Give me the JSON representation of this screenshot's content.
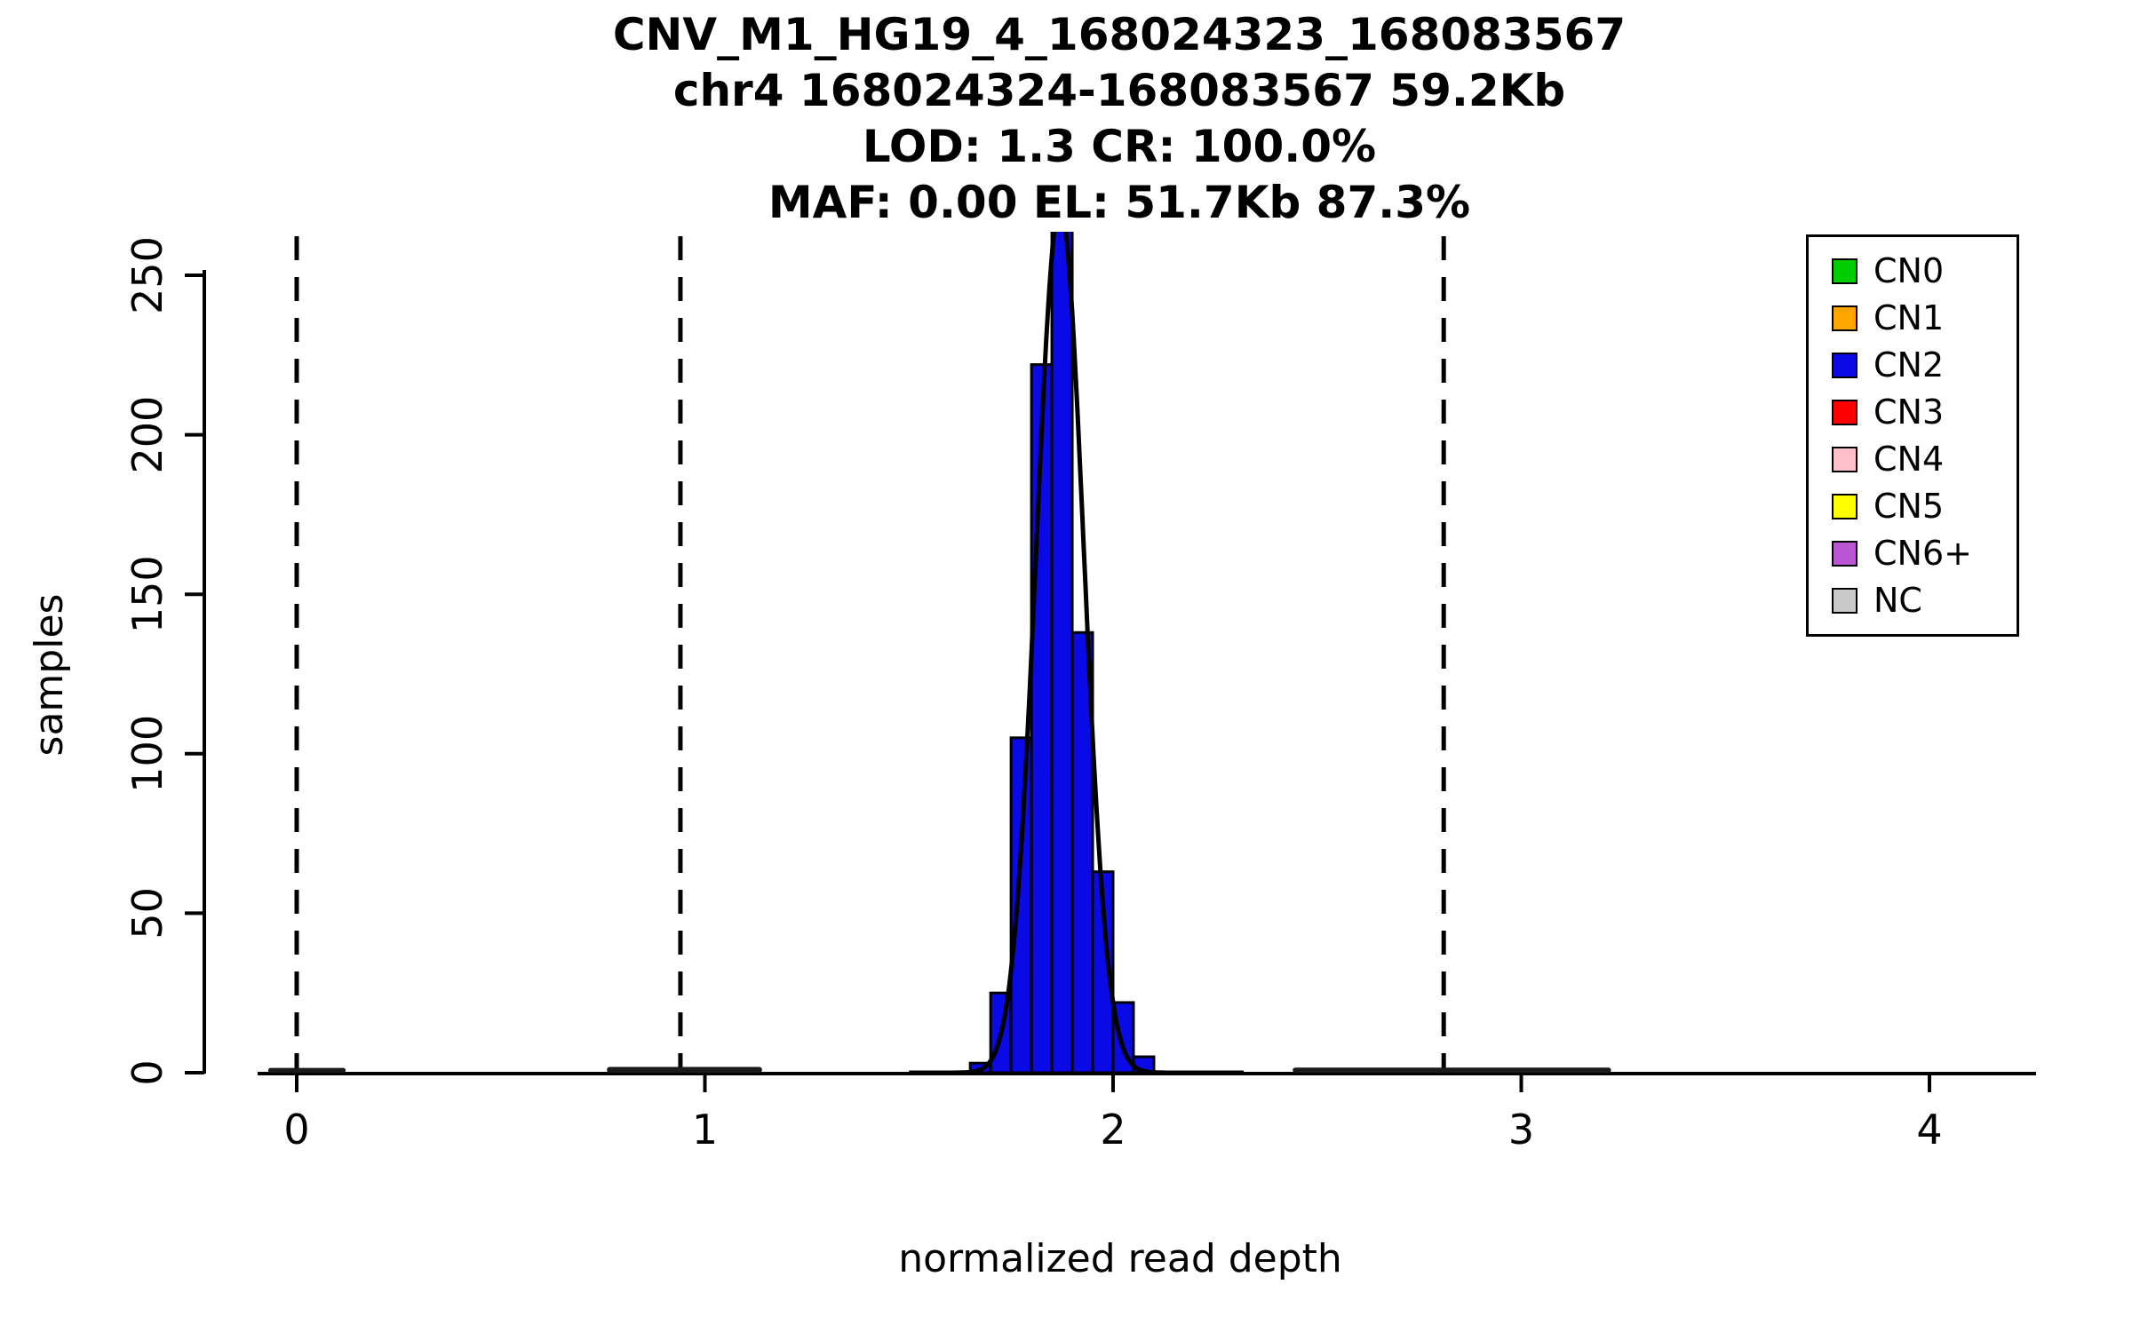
{
  "title": {
    "line1": "CNV_M1_HG19_4_168024323_168083567",
    "line2": "chr4 168024324-168083567 59.2Kb",
    "line3": "LOD: 1.3 CR: 100.0%",
    "line4": "MAF: 0.00 EL: 51.7Kb 87.3%"
  },
  "chart_data": {
    "type": "bar",
    "title": "CNV_M1_HG19_4_168024323_168083567",
    "subtitle_lines": [
      "chr4 168024324-168083567 59.2Kb",
      "LOD: 1.3 CR: 100.0%",
      "MAF: 0.00 EL: 51.7Kb 87.3%"
    ],
    "xlabel": "normalized read depth",
    "ylabel": "samples",
    "xlim": [
      -0.23,
      4.26
    ],
    "ylim": [
      0,
      263
    ],
    "x_ticks": [
      0,
      1,
      2,
      3,
      4
    ],
    "y_ticks": [
      0,
      50,
      100,
      150,
      200,
      250
    ],
    "grid": false,
    "legend_position": "top-right",
    "bar_color": "#0a0ae6",
    "bar_border": "#000000",
    "bin_width": 0.05,
    "bins": [
      {
        "x0": 1.65,
        "count": 3
      },
      {
        "x0": 1.7,
        "count": 25
      },
      {
        "x0": 1.75,
        "count": 105
      },
      {
        "x0": 1.8,
        "count": 222
      },
      {
        "x0": 1.85,
        "count": 270
      },
      {
        "x0": 1.9,
        "count": 138
      },
      {
        "x0": 1.95,
        "count": 63
      },
      {
        "x0": 2.0,
        "count": 22
      },
      {
        "x0": 2.05,
        "count": 5
      }
    ],
    "dashed_lines_x": [
      0,
      0.94,
      1.87,
      2.81
    ],
    "fit_curve": {
      "mean": 1.87,
      "sd": 0.058,
      "peak": 272,
      "range": [
        1.5,
        2.32
      ]
    },
    "baseline_bumps": [
      {
        "x0": -0.07,
        "x1": 0.12,
        "height": 1.5
      },
      {
        "x0": 0.76,
        "x1": 1.14,
        "height": 1.8
      },
      {
        "x0": 2.44,
        "x1": 3.22,
        "height": 1.6
      }
    ],
    "legend": {
      "entries": [
        {
          "label": "CN0",
          "color": "#00cc00"
        },
        {
          "label": "CN1",
          "color": "#ffa500"
        },
        {
          "label": "CN2",
          "color": "#0a0ae6"
        },
        {
          "label": "CN3",
          "color": "#ff0000"
        },
        {
          "label": "CN4",
          "color": "#ffc0cb"
        },
        {
          "label": "CN5",
          "color": "#ffff00"
        },
        {
          "label": "CN6+",
          "color": "#ba55d3"
        },
        {
          "label": "NC",
          "color": "#c9c9c9"
        }
      ]
    }
  }
}
